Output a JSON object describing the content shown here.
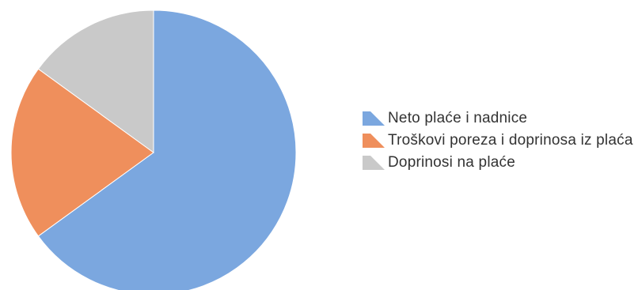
{
  "chart_data": {
    "type": "pie",
    "title": "",
    "legend_position": "right",
    "slices": [
      {
        "label": "Neto plaće i nadnice",
        "value": 65,
        "color": "#7ba7df"
      },
      {
        "label": "Troškovi poreza i doprinosa iz plaća",
        "value": 20,
        "color": "#ef8f5c"
      },
      {
        "label": "Doprinosi na plaće",
        "value": 15,
        "color": "#c9c9c9"
      }
    ]
  },
  "legend": {
    "items": [
      {
        "label": "Neto plaće i nadnice",
        "icon": "blue-swatch-icon"
      },
      {
        "label": "Troškovi poreza i doprinosa iz plaća",
        "icon": "orange-swatch-icon"
      },
      {
        "label": "Doprinosi na plaće",
        "icon": "gray-swatch-icon"
      }
    ]
  }
}
